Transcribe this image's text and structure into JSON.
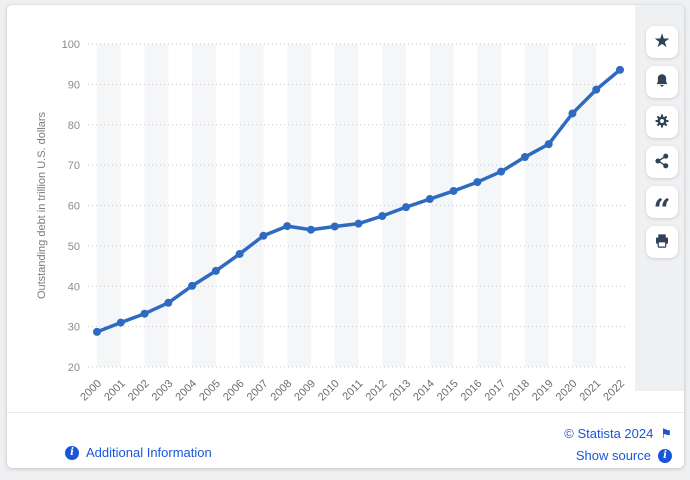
{
  "widget": {
    "footer": {
      "additional_information_label": "Additional Information",
      "copyright_label": "© Statista 2024",
      "show_source_label": "Show source"
    },
    "toolbar_buttons": [
      "favorite",
      "notifications",
      "settings",
      "share",
      "cite",
      "print"
    ]
  },
  "icons": {
    "info_glyph": "i",
    "star_glyph": "★",
    "quote_glyph": "“",
    "flag_glyph": "⚑"
  },
  "colors": {
    "accent_blue": "#1a55d9",
    "line_blue": "#2e6bc0",
    "icon_navy": "#2f4256",
    "page_gray": "#eff0f2"
  },
  "chart_data": {
    "type": "line",
    "title": "",
    "xlabel": "",
    "ylabel": "Outstanding debt in trillion U.S. dollars",
    "x": [
      "2000",
      "2001",
      "2002",
      "2003",
      "2004",
      "2005",
      "2006",
      "2007",
      "2008",
      "2009",
      "2010",
      "2011",
      "2012",
      "2013",
      "2014",
      "2015",
      "2016",
      "2017",
      "2018",
      "2019",
      "2020",
      "2021",
      "2022"
    ],
    "series": [
      {
        "name": "Outstanding debt in trillion U.S. dollars",
        "values": [
          28.7,
          31.0,
          33.2,
          35.9,
          40.1,
          43.8,
          48.0,
          52.5,
          54.9,
          54.0,
          54.8,
          55.5,
          57.4,
          59.6,
          61.6,
          63.6,
          65.8,
          68.4,
          72.0,
          75.2,
          82.8,
          88.7,
          93.6
        ]
      }
    ],
    "ylim": [
      20,
      100
    ],
    "yticks": [
      20,
      30,
      40,
      50,
      60,
      70,
      80,
      90,
      100
    ],
    "grid": "horizontal-dotted",
    "legend": "none",
    "line_color": "#2e6bc0",
    "band_color": "#f5f6f8"
  }
}
